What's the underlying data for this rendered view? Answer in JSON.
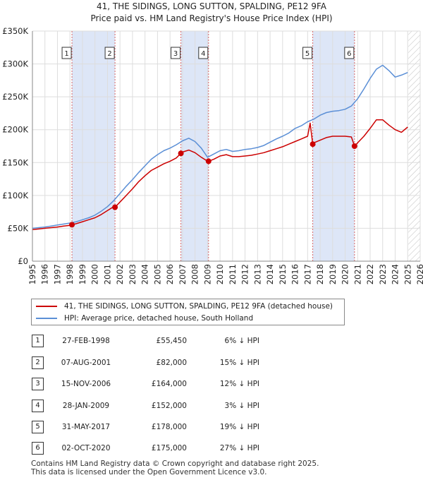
{
  "title": {
    "line1": "41, THE SIDINGS, LONG SUTTON, SPALDING, PE12 9FA",
    "line2": "Price paid vs. HM Land Registry's House Price Index (HPI)"
  },
  "colors": {
    "property": "#cc0000",
    "hpi": "#5b8fd6",
    "shade": "#dde6f7",
    "grid": "#dddddd",
    "marker_line": "#d66666"
  },
  "legend": {
    "property_label": "41, THE SIDINGS, LONG SUTTON, SPALDING, PE12 9FA (detached house)",
    "hpi_label": "HPI: Average price, detached house, South Holland"
  },
  "transactions": [
    {
      "num": "1",
      "date": "27-FEB-1998",
      "price": "£55,450",
      "hpi": "6% ↓ HPI"
    },
    {
      "num": "2",
      "date": "07-AUG-2001",
      "price": "£82,000",
      "hpi": "15% ↓ HPI"
    },
    {
      "num": "3",
      "date": "15-NOV-2006",
      "price": "£164,000",
      "hpi": "12% ↓ HPI"
    },
    {
      "num": "4",
      "date": "28-JAN-2009",
      "price": "£152,000",
      "hpi": "3% ↓ HPI"
    },
    {
      "num": "5",
      "date": "31-MAY-2017",
      "price": "£178,000",
      "hpi": "19% ↓ HPI"
    },
    {
      "num": "6",
      "date": "02-OCT-2020",
      "price": "£175,000",
      "hpi": "27% ↓ HPI"
    }
  ],
  "footer": {
    "line1": "Contains HM Land Registry data © Crown copyright and database right 2025.",
    "line2": "This data is licensed under the Open Government Licence v3.0."
  },
  "chart_data": {
    "type": "line",
    "xlim": [
      1995,
      2026
    ],
    "ylim": [
      0,
      350000
    ],
    "x_ticks": [
      1995,
      1996,
      1997,
      1998,
      1999,
      2000,
      2001,
      2002,
      2003,
      2004,
      2005,
      2006,
      2007,
      2008,
      2009,
      2010,
      2011,
      2012,
      2013,
      2014,
      2015,
      2016,
      2017,
      2018,
      2019,
      2020,
      2021,
      2022,
      2023,
      2024,
      2025,
      2026
    ],
    "y_ticks": [
      {
        "value": 0,
        "label": "£0"
      },
      {
        "value": 50000,
        "label": "£50K"
      },
      {
        "value": 100000,
        "label": "£100K"
      },
      {
        "value": 150000,
        "label": "£150K"
      },
      {
        "value": 200000,
        "label": "£200K"
      },
      {
        "value": 250000,
        "label": "£250K"
      },
      {
        "value": 300000,
        "label": "£300K"
      },
      {
        "value": 350000,
        "label": "£350K"
      }
    ],
    "grid": true,
    "shaded_periods": [
      [
        1998.16,
        2001.6
      ],
      [
        2006.87,
        2009.08
      ],
      [
        2017.41,
        2020.75
      ]
    ],
    "future_hatch_from": 2025.05,
    "sales": [
      {
        "label": "1",
        "x": 1998.16,
        "y": 55450
      },
      {
        "label": "2",
        "x": 2001.6,
        "y": 82000
      },
      {
        "label": "3",
        "x": 2006.87,
        "y": 164000
      },
      {
        "label": "4",
        "x": 2009.08,
        "y": 152000
      },
      {
        "label": "5",
        "x": 2017.41,
        "y": 178000
      },
      {
        "label": "6",
        "x": 2020.75,
        "y": 175000
      }
    ],
    "series": [
      {
        "name": "HPI: Average price, detached house, South Holland",
        "x": [
          1995.0,
          1995.5,
          1996.0,
          1996.5,
          1997.0,
          1997.5,
          1998.0,
          1998.5,
          1999.0,
          1999.5,
          2000.0,
          2000.5,
          2001.0,
          2001.5,
          2002.0,
          2002.5,
          2003.0,
          2003.5,
          2004.0,
          2004.5,
          2005.0,
          2005.5,
          2006.0,
          2006.5,
          2007.0,
          2007.5,
          2008.0,
          2008.5,
          2009.0,
          2009.5,
          2010.0,
          2010.5,
          2011.0,
          2011.5,
          2012.0,
          2012.5,
          2013.0,
          2013.5,
          2014.0,
          2014.5,
          2015.0,
          2015.5,
          2016.0,
          2016.5,
          2017.0,
          2017.5,
          2018.0,
          2018.5,
          2019.0,
          2019.5,
          2020.0,
          2020.5,
          2021.0,
          2021.5,
          2022.0,
          2022.5,
          2023.0,
          2023.5,
          2024.0,
          2024.5,
          2025.0
        ],
        "values": [
          50000,
          51000,
          52000,
          53500,
          55000,
          56500,
          58000,
          60000,
          63000,
          66000,
          70000,
          76000,
          83000,
          92000,
          103000,
          114000,
          124000,
          135000,
          145000,
          155000,
          162000,
          168000,
          172000,
          177000,
          183000,
          187000,
          182000,
          172000,
          158000,
          163000,
          168000,
          170000,
          167000,
          168000,
          170000,
          171000,
          173000,
          176000,
          181000,
          186000,
          190000,
          195000,
          202000,
          206000,
          212000,
          216000,
          222000,
          226000,
          228000,
          229000,
          231000,
          236000,
          247000,
          262000,
          278000,
          292000,
          298000,
          290000,
          280000,
          283000,
          287000
        ]
      },
      {
        "name": "41, THE SIDINGS, LONG SUTTON, SPALDING, PE12 9FA (detached house)",
        "x": [
          1995.0,
          1995.5,
          1996.0,
          1996.5,
          1997.0,
          1997.5,
          1998.0,
          1998.16,
          1998.5,
          1999.0,
          1999.5,
          2000.0,
          2000.5,
          2001.0,
          2001.5,
          2001.6,
          2002.0,
          2002.5,
          2003.0,
          2003.5,
          2004.0,
          2004.5,
          2005.0,
          2005.5,
          2006.0,
          2006.5,
          2006.87,
          2007.0,
          2007.5,
          2008.0,
          2008.5,
          2009.0,
          2009.08,
          2009.5,
          2010.0,
          2010.5,
          2011.0,
          2011.5,
          2012.0,
          2012.5,
          2013.0,
          2013.5,
          2014.0,
          2014.5,
          2015.0,
          2015.5,
          2016.0,
          2016.5,
          2017.0,
          2017.2,
          2017.41,
          2017.5,
          2018.0,
          2018.5,
          2019.0,
          2019.5,
          2020.0,
          2020.5,
          2020.75,
          2021.0,
          2021.5,
          2022.0,
          2022.5,
          2023.0,
          2023.5,
          2024.0,
          2024.5,
          2025.0
        ],
        "values": [
          48000,
          49000,
          50000,
          51000,
          52000,
          53500,
          54500,
          55450,
          57000,
          60000,
          63000,
          66000,
          71000,
          77000,
          83000,
          82000,
          90000,
          100000,
          110000,
          121000,
          130000,
          138000,
          143000,
          148000,
          152000,
          157000,
          164000,
          166000,
          169000,
          165000,
          158000,
          152000,
          152000,
          155000,
          160000,
          162000,
          159000,
          159000,
          160000,
          161000,
          163000,
          165000,
          168000,
          171000,
          174000,
          178000,
          182000,
          186000,
          190000,
          210000,
          178000,
          180000,
          184000,
          188000,
          190000,
          190000,
          190000,
          189000,
          175000,
          180000,
          190000,
          202000,
          215000,
          215000,
          207000,
          200000,
          196000,
          204000
        ]
      }
    ]
  }
}
